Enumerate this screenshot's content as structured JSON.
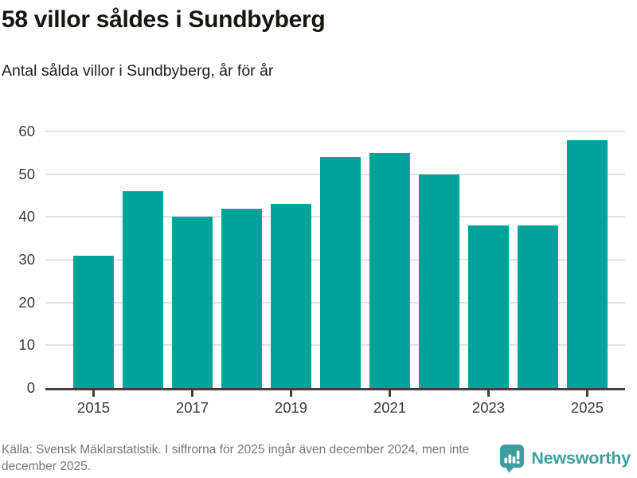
{
  "header": {
    "title": "58 villor såldes i Sundbyberg",
    "subtitle": "Antal sålda villor i Sundbyberg, år för år"
  },
  "chart_data": {
    "type": "bar",
    "title": "58 villor såldes i Sundbyberg",
    "subtitle": "Antal sålda villor i Sundbyberg, år för år",
    "categories": [
      "2015",
      "2016",
      "2017",
      "2018",
      "2019",
      "2020",
      "2021",
      "2022",
      "2023",
      "2024",
      "2025"
    ],
    "values": [
      31,
      46,
      40,
      42,
      43,
      54,
      55,
      50,
      38,
      38,
      58
    ],
    "x_tick_labels": [
      "2015",
      "2017",
      "2019",
      "2021",
      "2023",
      "2025"
    ],
    "y_ticks": [
      0,
      10,
      20,
      30,
      40,
      50,
      60
    ],
    "ylim": [
      0,
      60
    ],
    "xlabel": "",
    "ylabel": "",
    "grid": true,
    "legend": false,
    "bar_color": "#00a29a"
  },
  "footer": {
    "source": "Källa: Svensk Mäklarstatistik. I siffrorna för 2025 ingår även december 2024, men inte december 2025.",
    "brand": "Newsworthy",
    "brand_color": "#3f9d9e"
  }
}
